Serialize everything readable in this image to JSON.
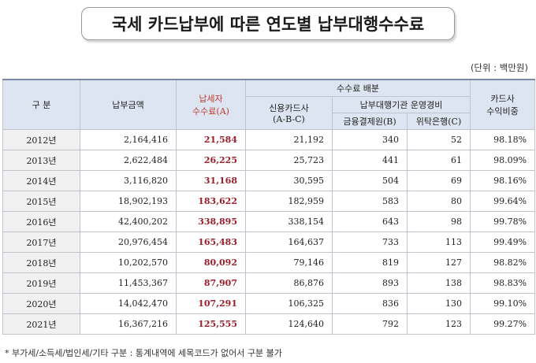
{
  "title": "국세 카드납부에 따른 연도별 납부대행수수료",
  "unit": "(단위 : 백만원)",
  "headers": {
    "gubun": "구 분",
    "payment": "납부금액",
    "taxpayer_fee_1": "납세자",
    "taxpayer_fee_2": "수수료(A)",
    "fee_dist": "수수료 배분",
    "card_1": "신용카드사",
    "card_2": "(A-B-C)",
    "agency": "납부대행기관 운영경비",
    "fin_inst": "금융결제원(B)",
    "trust_bank": "위탁은행(C)",
    "revenue_1": "카드사",
    "revenue_2": "수익비중"
  },
  "rows": [
    {
      "year": "2012년",
      "payment": "2,164,416",
      "fee": "21,584",
      "card": "21,192",
      "fin": "340",
      "bank": "52",
      "ratio": "98.18%"
    },
    {
      "year": "2013년",
      "payment": "2,622,484",
      "fee": "26,225",
      "card": "25,723",
      "fin": "441",
      "bank": "61",
      "ratio": "98.09%"
    },
    {
      "year": "2014년",
      "payment": "3,116,820",
      "fee": "31,168",
      "card": "30,595",
      "fin": "504",
      "bank": "69",
      "ratio": "98.16%"
    },
    {
      "year": "2015년",
      "payment": "18,902,193",
      "fee": "183,622",
      "card": "182,959",
      "fin": "583",
      "bank": "80",
      "ratio": "99.64%"
    },
    {
      "year": "2016년",
      "payment": "42,400,202",
      "fee": "338,895",
      "card": "338,154",
      "fin": "643",
      "bank": "98",
      "ratio": "99.78%"
    },
    {
      "year": "2017년",
      "payment": "20,976,454",
      "fee": "165,483",
      "card": "164,637",
      "fin": "733",
      "bank": "113",
      "ratio": "99.49%"
    },
    {
      "year": "2018년",
      "payment": "10,202,570",
      "fee": "80,092",
      "card": "79,146",
      "fin": "819",
      "bank": "127",
      "ratio": "98.82%"
    },
    {
      "year": "2019년",
      "payment": "11,453,367",
      "fee": "87,907",
      "card": "86,876",
      "fin": "893",
      "bank": "138",
      "ratio": "98.83%"
    },
    {
      "year": "2020년",
      "payment": "14,042,470",
      "fee": "107,291",
      "card": "106,325",
      "fin": "836",
      "bank": "130",
      "ratio": "99.10%"
    },
    {
      "year": "2021년",
      "payment": "16,367,216",
      "fee": "125,555",
      "card": "124,640",
      "fin": "792",
      "bank": "123",
      "ratio": "99.27%"
    }
  ],
  "footnote": "* 부가세/소득세/법인세/기타 구분 : 통계내역에 세목코드가 없어서 구분 불가"
}
